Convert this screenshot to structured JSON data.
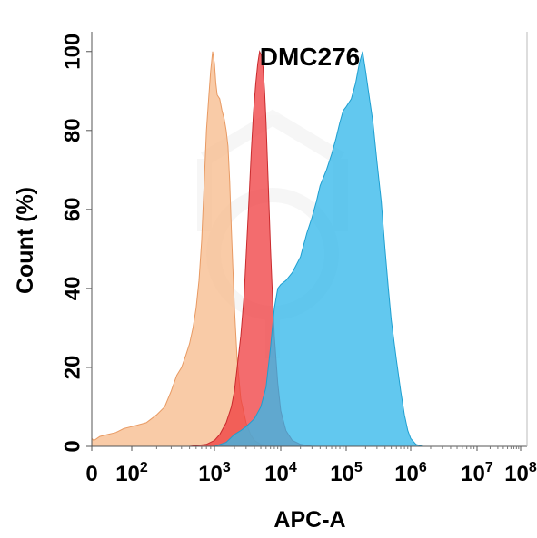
{
  "chart_data": {
    "type": "area",
    "title": "DMC276",
    "xlabel": "APC-A",
    "ylabel": "Count  (%)",
    "x_scale": "biexponential-log",
    "xlim": [
      0,
      100000000
    ],
    "ylim": [
      0,
      100
    ],
    "grid": false,
    "x_ticks": [
      {
        "base": "0",
        "exp": ""
      },
      {
        "base": "10",
        "exp": "2"
      },
      {
        "base": "10",
        "exp": "3"
      },
      {
        "base": "10",
        "exp": "4"
      },
      {
        "base": "10",
        "exp": "5"
      },
      {
        "base": "10",
        "exp": "6"
      },
      {
        "base": "10",
        "exp": "7"
      },
      {
        "base": "10",
        "exp": "8"
      }
    ],
    "y_ticks": [
      "0",
      "20",
      "40",
      "60",
      "80",
      "100"
    ],
    "series": [
      {
        "color": "#f7b98a",
        "stroke": "#e89a63",
        "points": [
          [
            0,
            2
          ],
          [
            5,
            1.5
          ],
          [
            10,
            1.8
          ],
          [
            20,
            2.5
          ],
          [
            40,
            3
          ],
          [
            60,
            3.5
          ],
          [
            80,
            4.5
          ],
          [
            100,
            5
          ],
          [
            150,
            6
          ],
          [
            200,
            8
          ],
          [
            250,
            10
          ],
          [
            300,
            14
          ],
          [
            350,
            18
          ],
          [
            400,
            20
          ],
          [
            450,
            23
          ],
          [
            500,
            26
          ],
          [
            550,
            30
          ],
          [
            600,
            35
          ],
          [
            650,
            42
          ],
          [
            700,
            52
          ],
          [
            750,
            66
          ],
          [
            800,
            80
          ],
          [
            850,
            88
          ],
          [
            900,
            95
          ],
          [
            950,
            100
          ],
          [
            1000,
            97
          ],
          [
            1050,
            92
          ],
          [
            1100,
            89
          ],
          [
            1200,
            88
          ],
          [
            1300,
            85
          ],
          [
            1400,
            83
          ],
          [
            1500,
            80
          ],
          [
            1600,
            76
          ],
          [
            1700,
            67
          ],
          [
            1800,
            55
          ],
          [
            1900,
            45
          ],
          [
            2000,
            35
          ],
          [
            2200,
            22
          ],
          [
            2500,
            12
          ],
          [
            3000,
            6
          ],
          [
            3500,
            3
          ],
          [
            4000,
            1.5
          ],
          [
            5000,
            0.5
          ],
          [
            8000,
            0
          ]
        ]
      },
      {
        "color": "#ef3b3e",
        "stroke": "#c92a2d",
        "points": [
          [
            0,
            0
          ],
          [
            500,
            0
          ],
          [
            800,
            0.5
          ],
          [
            1000,
            1.5
          ],
          [
            1200,
            3
          ],
          [
            1500,
            6
          ],
          [
            1800,
            10
          ],
          [
            2000,
            14
          ],
          [
            2200,
            20
          ],
          [
            2500,
            28
          ],
          [
            2800,
            38
          ],
          [
            3000,
            48
          ],
          [
            3300,
            62
          ],
          [
            3600,
            75
          ],
          [
            3900,
            85
          ],
          [
            4200,
            92
          ],
          [
            4500,
            97
          ],
          [
            4800,
            100
          ],
          [
            5100,
            99
          ],
          [
            5400,
            96
          ],
          [
            5700,
            90
          ],
          [
            6000,
            82
          ],
          [
            6500,
            66
          ],
          [
            7000,
            50
          ],
          [
            7500,
            38
          ],
          [
            8000,
            28
          ],
          [
            9000,
            16
          ],
          [
            10000,
            9
          ],
          [
            12000,
            4
          ],
          [
            15000,
            1.5
          ],
          [
            20000,
            0.5
          ],
          [
            30000,
            0
          ]
        ]
      },
      {
        "color": "#36b8ea",
        "stroke": "#1e9fd0",
        "points": [
          [
            0,
            0
          ],
          [
            1000,
            0
          ],
          [
            1500,
            1
          ],
          [
            2000,
            3
          ],
          [
            2500,
            4
          ],
          [
            3000,
            5
          ],
          [
            4000,
            7
          ],
          [
            5000,
            10
          ],
          [
            6000,
            15
          ],
          [
            7000,
            25
          ],
          [
            8000,
            35
          ],
          [
            9000,
            40
          ],
          [
            10000,
            41
          ],
          [
            12000,
            42
          ],
          [
            15000,
            44
          ],
          [
            20000,
            48
          ],
          [
            25000,
            54
          ],
          [
            30000,
            58
          ],
          [
            35000,
            62
          ],
          [
            40000,
            66
          ],
          [
            50000,
            70
          ],
          [
            60000,
            74
          ],
          [
            70000,
            78
          ],
          [
            80000,
            82
          ],
          [
            90000,
            85
          ],
          [
            100000,
            86
          ],
          [
            120000,
            88
          ],
          [
            140000,
            92
          ],
          [
            160000,
            97
          ],
          [
            180000,
            100
          ],
          [
            200000,
            95
          ],
          [
            230000,
            88
          ],
          [
            260000,
            82
          ],
          [
            300000,
            72
          ],
          [
            350000,
            62
          ],
          [
            400000,
            50
          ],
          [
            450000,
            40
          ],
          [
            500000,
            32
          ],
          [
            600000,
            22
          ],
          [
            700000,
            14
          ],
          [
            800000,
            8
          ],
          [
            900000,
            4
          ],
          [
            1000000,
            2
          ],
          [
            1200000,
            0.5
          ],
          [
            1500000,
            0
          ]
        ]
      }
    ]
  }
}
